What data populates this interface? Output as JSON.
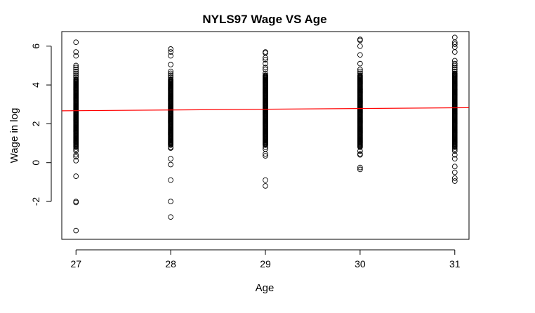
{
  "chart_data": {
    "type": "scatter",
    "title": "NYLS97 Wage VS Age",
    "xlabel": "Age",
    "ylabel": "Wage in log",
    "xlim": [
      26.85,
      31.15
    ],
    "ylim": [
      -3.95,
      6.75
    ],
    "x_ticks": [
      27,
      28,
      29,
      30,
      31
    ],
    "y_ticks": [
      -2,
      0,
      2,
      4,
      6
    ],
    "grid": false,
    "legend": "none",
    "point_color": "#000000",
    "fit_line_color": "#ff0000",
    "fit_line": {
      "x": [
        26.85,
        31.15
      ],
      "y": [
        2.67,
        2.83
      ]
    },
    "series": [
      {
        "x_value": 27,
        "dense_range": [
          0.8,
          4.3
        ],
        "points": [
          6.2,
          5.7,
          5.5,
          5.0,
          4.9,
          4.8,
          4.7,
          4.6,
          4.5,
          4.4,
          0.7,
          0.6,
          0.4,
          0.3,
          0.1,
          -0.7,
          -2.0,
          -2.05,
          -3.5
        ]
      },
      {
        "x_value": 28,
        "dense_range": [
          0.9,
          4.3
        ],
        "points": [
          5.85,
          5.7,
          5.5,
          5.05,
          4.7,
          4.6,
          4.5,
          4.4,
          0.8,
          0.75,
          0.2,
          -0.1,
          -0.9,
          -2.0,
          -2.8
        ]
      },
      {
        "x_value": 29,
        "dense_range": [
          0.9,
          4.5
        ],
        "points": [
          5.7,
          5.65,
          5.4,
          5.3,
          5.1,
          4.9,
          4.8,
          4.6,
          0.8,
          0.7,
          0.45,
          0.35,
          -0.9,
          -1.2
        ]
      },
      {
        "x_value": 30,
        "dense_range": [
          0.8,
          4.5
        ],
        "points": [
          6.35,
          6.3,
          6.0,
          5.55,
          5.1,
          4.8,
          4.7,
          4.6,
          0.6,
          0.45,
          0.4,
          -0.25,
          -0.35
        ]
      },
      {
        "x_value": 31,
        "dense_range": [
          0.8,
          4.6
        ],
        "points": [
          6.45,
          6.2,
          6.1,
          5.95,
          5.7,
          5.25,
          5.1,
          5.0,
          4.9,
          4.8,
          4.7,
          0.7,
          0.6,
          0.4,
          0.2,
          -0.2,
          -0.5,
          -0.8,
          -0.95
        ]
      }
    ]
  }
}
